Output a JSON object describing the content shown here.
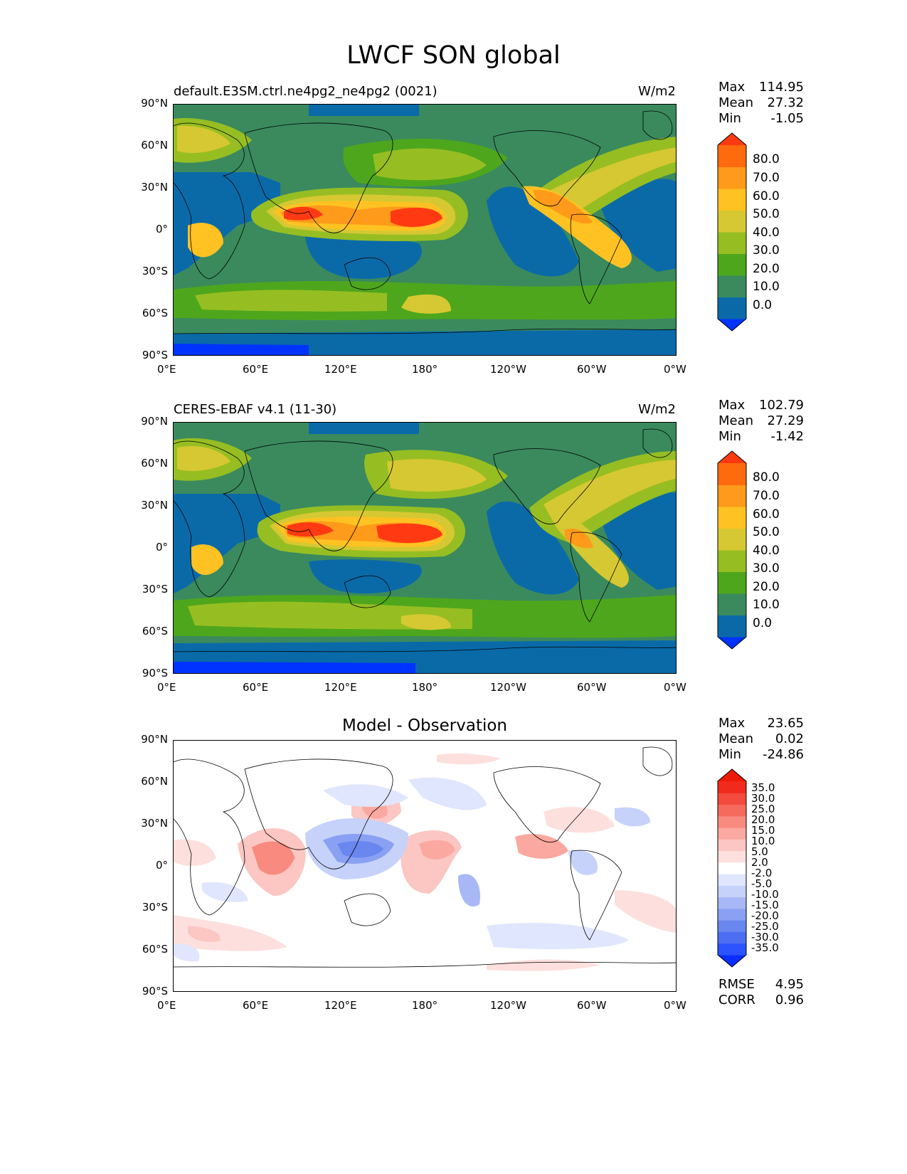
{
  "title": "LWCF SON global",
  "ticks": {
    "lat": [
      "90°N",
      "60°N",
      "30°N",
      "0°",
      "30°S",
      "60°S",
      "90°S"
    ],
    "lon": [
      "0°E",
      "60°E",
      "120°E",
      "180°",
      "120°W",
      "60°W",
      "0°W"
    ]
  },
  "panels": [
    {
      "title": "default.E3SM.ctrl.ne4pg2_ne4pg2 (0021)",
      "units": "W/m2",
      "stats": [
        {
          "label": "Max",
          "value": "114.95"
        },
        {
          "label": "Mean",
          "value": "27.32"
        },
        {
          "label": "Min",
          "value": "-1.05"
        }
      ],
      "colorbar": {
        "labels": [
          "80.0",
          "70.0",
          "60.0",
          "50.0",
          "40.0",
          "30.0",
          "20.0",
          "10.0",
          "0.0"
        ],
        "colors": [
          "#0033ff",
          "#0a6aa8",
          "#3a8a5e",
          "#4ea61c",
          "#96be22",
          "#d6c832",
          "#ffc222",
          "#ff9a1a",
          "#ff6a0e",
          "#ff3a12"
        ]
      }
    },
    {
      "title": "CERES-EBAF v4.1 (11-30)",
      "units": "W/m2",
      "stats": [
        {
          "label": "Max",
          "value": "102.79"
        },
        {
          "label": "Mean",
          "value": "27.29"
        },
        {
          "label": "Min",
          "value": "-1.42"
        }
      ],
      "colorbar": {
        "labels": [
          "80.0",
          "70.0",
          "60.0",
          "50.0",
          "40.0",
          "30.0",
          "20.0",
          "10.0",
          "0.0"
        ],
        "colors": [
          "#0033ff",
          "#0a6aa8",
          "#3a8a5e",
          "#4ea61c",
          "#96be22",
          "#d6c832",
          "#ffc222",
          "#ff9a1a",
          "#ff6a0e",
          "#ff3a12"
        ]
      }
    },
    {
      "title": "Model - Observation",
      "stats": [
        {
          "label": "Max",
          "value": "23.65"
        },
        {
          "label": "Mean",
          "value": "0.02"
        },
        {
          "label": "Min",
          "value": "-24.86"
        }
      ],
      "extra_stats": [
        {
          "label": "RMSE",
          "value": "4.95"
        },
        {
          "label": "CORR",
          "value": "0.96"
        }
      ],
      "colorbar": {
        "labels": [
          "35.0",
          "30.0",
          "25.0",
          "20.0",
          "15.0",
          "10.0",
          "5.0",
          "2.0",
          "-2.0",
          "-5.0",
          "-10.0",
          "-15.0",
          "-20.0",
          "-25.0",
          "-30.0",
          "-35.0"
        ],
        "colors": [
          "#0a2eff",
          "#2d52ff",
          "#4d6ef2",
          "#6a86ef",
          "#8aa0f2",
          "#a8b8f6",
          "#c6d2fa",
          "#e0e6fd",
          "#ffffff",
          "#fde0de",
          "#fcc6c2",
          "#fba8a0",
          "#f98a80",
          "#f66a5e",
          "#f24a3c",
          "#f02a1c",
          "#ee1a08"
        ]
      }
    }
  ]
}
